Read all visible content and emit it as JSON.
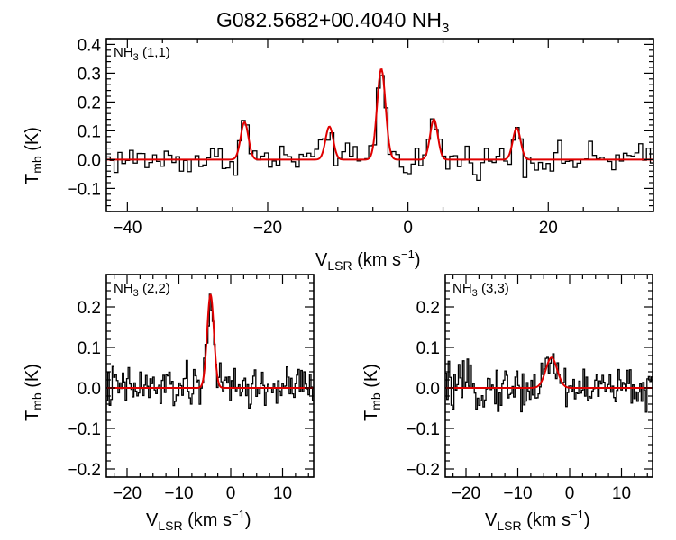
{
  "title_main": "G082.5682+00.4040 NH",
  "title_sub": "3",
  "colors": {
    "data": "#000000",
    "fit": "#e00000"
  },
  "y_label_main": "T",
  "y_label_sub": "mb",
  "y_label_unit": " (K)",
  "x_label_main": "V",
  "x_label_sub": "LSR",
  "x_label_unit": " (km s",
  "x_label_exp": "−1",
  "x_label_close": ")",
  "chart_data": [
    {
      "id": "p11",
      "type": "line",
      "label_main": "NH",
      "label_sub": "3",
      "label_rest": " (1,1)",
      "xlim": [
        -43,
        35
      ],
      "ylim": [
        -0.18,
        0.42
      ],
      "xticks": [
        -40,
        -20,
        0,
        20
      ],
      "yticks": [
        -0.1,
        0.0,
        0.1,
        0.2,
        0.3,
        0.4
      ],
      "xlabel": "V_LSR (km s^-1)",
      "ylabel": "T_mb (K)",
      "channel_width": 0.55,
      "noise_rms": 0.045,
      "fit_components": [
        {
          "center": -23.3,
          "amplitude": 0.13,
          "sigma": 0.55
        },
        {
          "center": -11.2,
          "amplitude": 0.115,
          "sigma": 0.55
        },
        {
          "center": -3.8,
          "amplitude": 0.315,
          "sigma": 0.6
        },
        {
          "center": 3.7,
          "amplitude": 0.14,
          "sigma": 0.55
        },
        {
          "center": 15.5,
          "amplitude": 0.11,
          "sigma": 0.55
        }
      ]
    },
    {
      "id": "p22",
      "type": "line",
      "label_main": "NH",
      "label_sub": "3",
      "label_rest": " (2,2)",
      "xlim": [
        -24,
        16
      ],
      "ylim": [
        -0.22,
        0.28
      ],
      "xticks": [
        -20,
        -10,
        0,
        10
      ],
      "yticks": [
        -0.2,
        -0.1,
        0.0,
        0.1,
        0.2
      ],
      "xlabel": "V_LSR (km s^-1)",
      "ylabel": "T_mb (K)",
      "channel_width": 0.28,
      "noise_rms": 0.045,
      "fit_components": [
        {
          "center": -3.9,
          "amplitude": 0.23,
          "sigma": 0.65
        }
      ]
    },
    {
      "id": "p33",
      "type": "line",
      "label_main": "NH",
      "label_sub": "3",
      "label_rest": " (3,3)",
      "xlim": [
        -24,
        16
      ],
      "ylim": [
        -0.22,
        0.28
      ],
      "xticks": [
        -20,
        -10,
        0,
        10
      ],
      "yticks": [
        -0.2,
        -0.1,
        0.0,
        0.1,
        0.2
      ],
      "xlabel": "V_LSR (km s^-1)",
      "ylabel": "T_mb (K)",
      "channel_width": 0.28,
      "noise_rms": 0.045,
      "fit_components": [
        {
          "center": -3.5,
          "amplitude": 0.075,
          "sigma": 1.1
        }
      ]
    }
  ]
}
